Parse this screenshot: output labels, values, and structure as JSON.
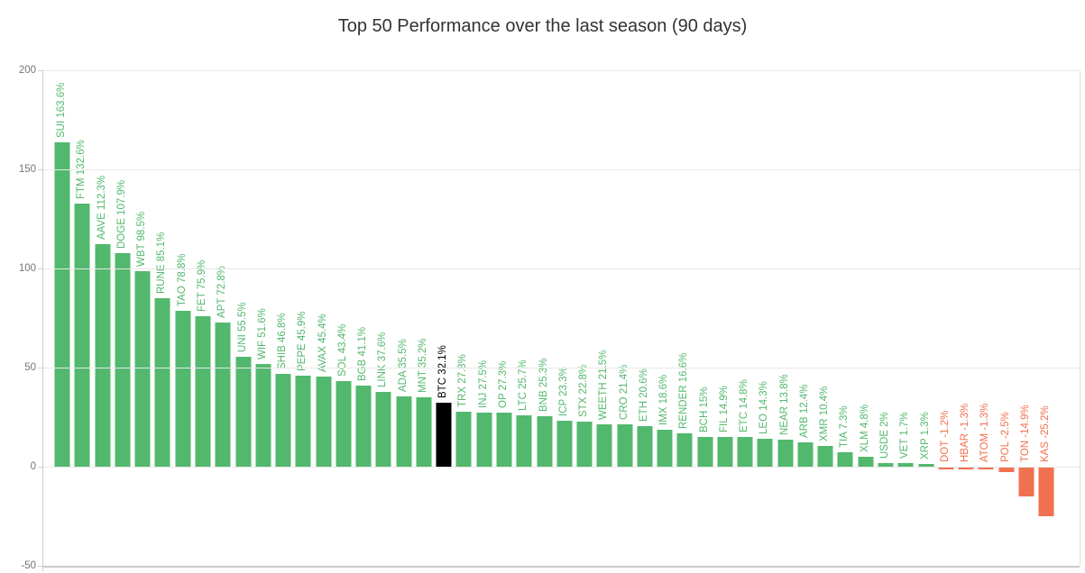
{
  "title": "Top 50 Performance over the last season (90 days)",
  "colors": {
    "positive": "#52b86d",
    "negative": "#f0714f",
    "highlight": "#000000",
    "grid": "#e8e8e8",
    "axis": "#cccccc",
    "tick_label_text": "#757575",
    "title_text": "#333333"
  },
  "chart_data": {
    "type": "bar",
    "title": "Top 50 Performance over the last season (90 days)",
    "xlabel": "",
    "ylabel": "",
    "ylim": [
      -50,
      200
    ],
    "ytick_values": [
      200,
      150,
      100,
      50,
      0,
      -50
    ],
    "grid": true,
    "legend": false,
    "highlight_category": "BTC",
    "categories": [
      "SUI",
      "FTM",
      "AAVE",
      "DOGE",
      "WBT",
      "RUNE",
      "TAO",
      "FET",
      "APT",
      "UNI",
      "WIF",
      "SHIB",
      "PEPE",
      "AVAX",
      "SOL",
      "BGB",
      "LINK",
      "ADA",
      "MNT",
      "BTC",
      "TRX",
      "INJ",
      "OP",
      "LTC",
      "BNB",
      "ICP",
      "STX",
      "WEETH",
      "CRO",
      "ETH",
      "IMX",
      "RENDER",
      "BCH",
      "FIL",
      "ETC",
      "LEO",
      "NEAR",
      "ARB",
      "XMR",
      "TIA",
      "XLM",
      "USDE",
      "VET",
      "XRP",
      "DOT",
      "HBAR",
      "ATOM",
      "POL",
      "TON",
      "KAS"
    ],
    "values": [
      163.6,
      132.6,
      112.3,
      107.9,
      98.5,
      85.1,
      78.8,
      75.9,
      72.8,
      55.5,
      51.6,
      46.8,
      45.9,
      45.4,
      43.4,
      41.1,
      37.6,
      35.5,
      35.2,
      32.1,
      27.8,
      27.5,
      27.3,
      25.7,
      25.3,
      23.3,
      22.8,
      21.5,
      21.4,
      20.6,
      18.6,
      16.6,
      15,
      14.9,
      14.8,
      14.3,
      13.8,
      12.4,
      10.4,
      7.3,
      4.8,
      2,
      1.7,
      1.3,
      -1.2,
      -1.3,
      -1.3,
      -2.5,
      -14.9,
      -25.2
    ],
    "labels": [
      "SUI 163.6%",
      "FTM 132.6%",
      "AAVE 112.3%",
      "DOGE 107.9%",
      "WBT 98.5%",
      "RUNE 85.1%",
      "TAO 78.8%",
      "FET 75.9%",
      "APT 72.8%",
      "UNI 55.5%",
      "WIF 51.6%",
      "SHIB 46.8%",
      "PEPE 45.9%",
      "AVAX 45.4%",
      "SOL 43.4%",
      "BGB 41.1%",
      "LINK 37.6%",
      "ADA 35.5%",
      "MNT 35.2%",
      "BTC 32.1%",
      "TRX 27.8%",
      "INJ 27.5%",
      "OP 27.3%",
      "LTC 25.7%",
      "BNB 25.3%",
      "ICP 23.3%",
      "STX 22.8%",
      "WEETH 21.5%",
      "CRO 21.4%",
      "ETH 20.6%",
      "IMX 18.6%",
      "RENDER 16.6%",
      "BCH 15%",
      "FIL 14.9%",
      "ETC 14.8%",
      "LEO 14.3%",
      "NEAR 13.8%",
      "ARB 12.4%",
      "XMR 10.4%",
      "TIA 7.3%",
      "XLM 4.8%",
      "USDE 2%",
      "VET 1.7%",
      "XRP 1.3%",
      "DOT -1.2%",
      "HBAR -1.3%",
      "ATOM -1.3%",
      "POL -2.5%",
      "TON -14.9%",
      "KAS -25.2%"
    ]
  }
}
